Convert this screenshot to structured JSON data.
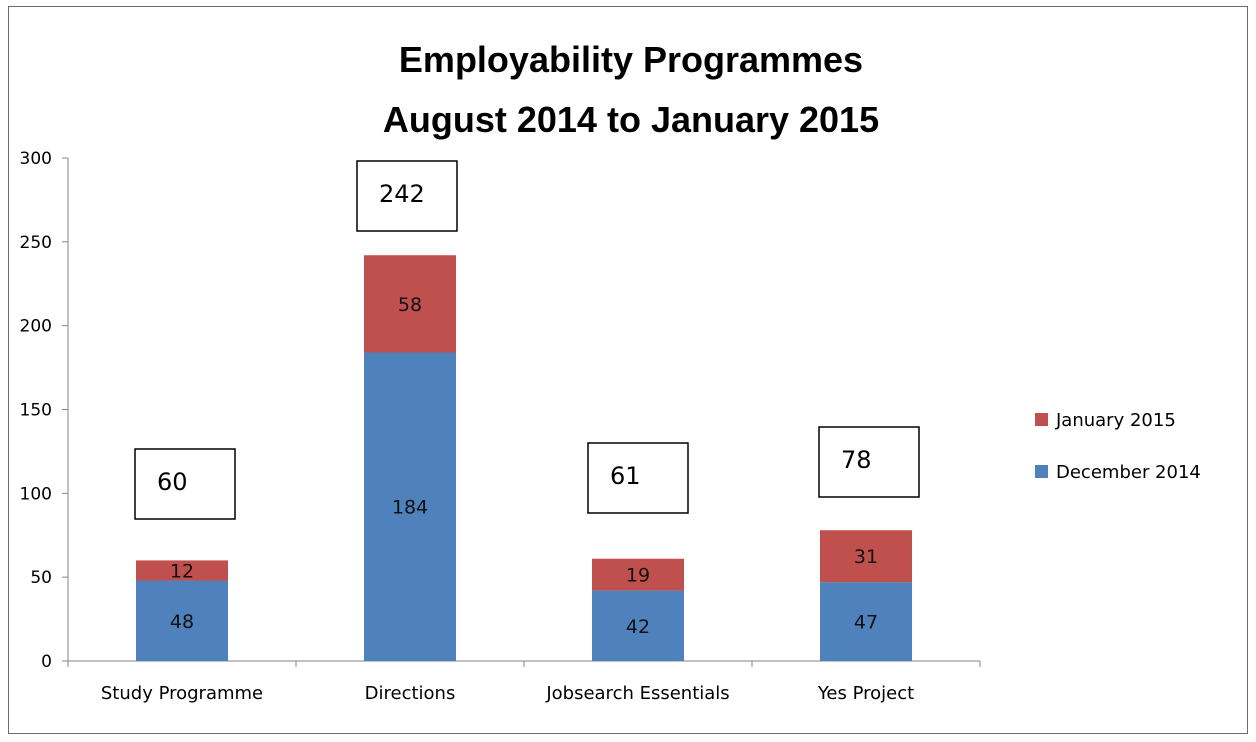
{
  "chart_data": {
    "type": "bar",
    "stacked": true,
    "title": [
      "Employability Programmes",
      "August 2014 to January 2015"
    ],
    "xlabel": "",
    "ylabel": "",
    "ylim": [
      0,
      300
    ],
    "yticks": [
      0,
      50,
      100,
      150,
      200,
      250,
      300
    ],
    "grid": false,
    "legend_position": "right",
    "categories": [
      "Study Programme",
      "Directions",
      "Jobsearch Essentials",
      "Yes Project"
    ],
    "series": [
      {
        "name": "December 2014",
        "values": [
          48,
          184,
          42,
          47
        ],
        "color": "#4f81bd"
      },
      {
        "name": "January 2015",
        "values": [
          12,
          58,
          19,
          31
        ],
        "color": "#c0504d"
      }
    ],
    "totals": [
      "60",
      "242",
      "61",
      "78"
    ]
  }
}
